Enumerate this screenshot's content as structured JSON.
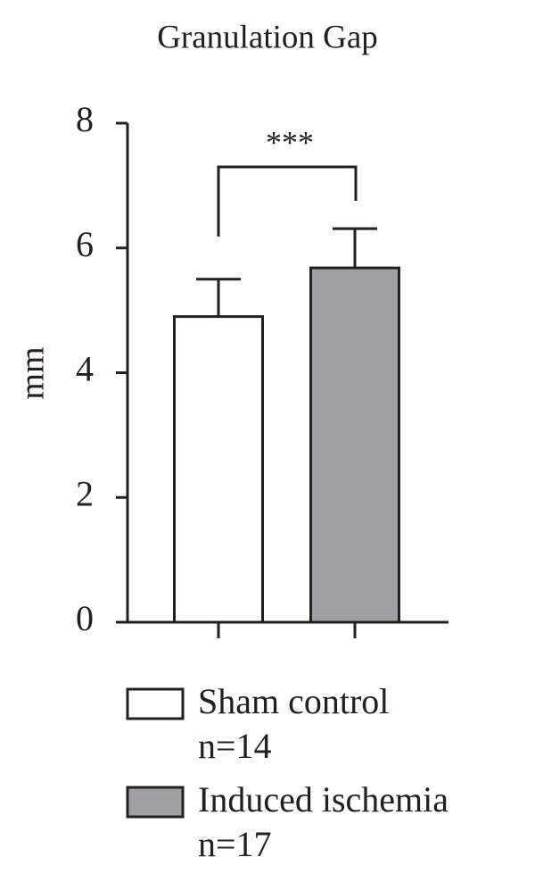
{
  "chart_data": {
    "type": "bar",
    "title": "Granulation Gap",
    "y_label": "mm",
    "categories": [
      null,
      null
    ],
    "series": [
      {
        "name": "Sham control",
        "count_label": "n=14",
        "color": "#ffffff",
        "values": [
          4.9,
          null
        ],
        "errors": [
          0.6,
          null
        ]
      },
      {
        "name": "Induced ischemia",
        "count_label": "n=17",
        "color": "#a0a0a2",
        "values": [
          null,
          5.68
        ],
        "errors": [
          null,
          0.63
        ]
      }
    ],
    "annotation": "***",
    "ylim": [
      0,
      8
    ],
    "yticks": [
      0,
      2,
      4,
      6,
      8
    ],
    "grid": false
  }
}
